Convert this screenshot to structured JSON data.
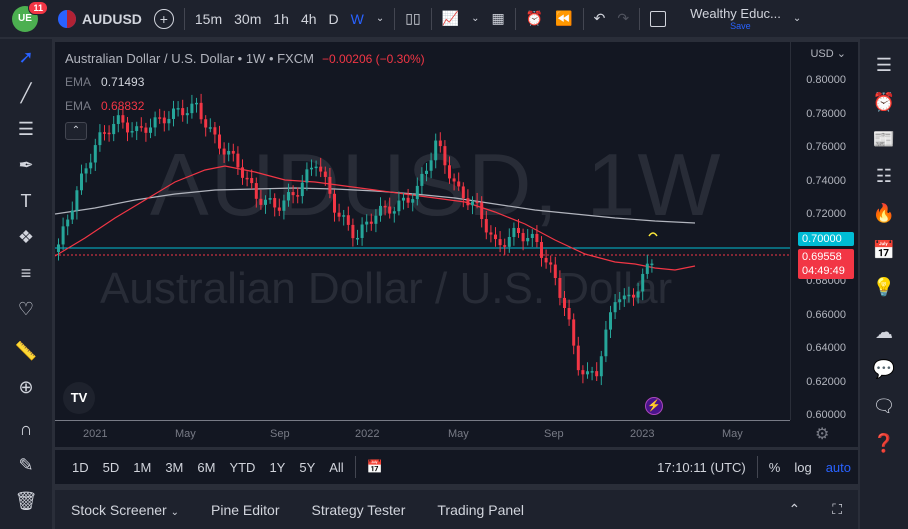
{
  "topbar": {
    "logo_text": "UE",
    "notification_count": "11",
    "symbol": "AUDUSD",
    "timeframes": [
      "15m",
      "30m",
      "1h",
      "4h",
      "D",
      "W"
    ],
    "active_timeframe": "W",
    "layout_name": "Wealthy Educ...",
    "save_label": "Save"
  },
  "chart": {
    "title": "Australian Dollar / U.S. Dollar • 1W • FXCM",
    "change": "−0.00206 (−0.30%)",
    "ema1_label": "EMA",
    "ema1_value": "0.71493",
    "ema2_label": "EMA",
    "ema2_value": "0.68832",
    "watermark_symbol": "AUDUSD, 1W",
    "watermark_name": "Australian Dollar / U.S. Dollar",
    "currency": "USD",
    "price_ticks": [
      "0.80000",
      "0.78000",
      "0.76000",
      "0.74000",
      "0.72000",
      "0.70000",
      "0.68000",
      "0.66000",
      "0.64000",
      "0.62000",
      "0.60000"
    ],
    "time_ticks": [
      "2021",
      "May",
      "Sep",
      "2022",
      "May",
      "Sep",
      "2023",
      "May"
    ],
    "hline_price": "0.70000",
    "last_price": "0.69558",
    "countdown": "04:49:49",
    "colors": {
      "up": "#26a69a",
      "down": "#f23645",
      "ema_fast": "#f23645",
      "ema_slow": "#b2b5be",
      "hline": "#00bcd4",
      "accent": "#2962ff"
    }
  },
  "bottom": {
    "ranges": [
      "1D",
      "5D",
      "1M",
      "3M",
      "6M",
      "YTD",
      "1Y",
      "5Y",
      "All"
    ],
    "clock": "17:10:11 (UTC)",
    "percent": "%",
    "log": "log",
    "auto": "auto"
  },
  "panels": {
    "stock_screener": "Stock Screener",
    "pine_editor": "Pine Editor",
    "strategy_tester": "Strategy Tester",
    "trading_panel": "Trading Panel"
  }
}
